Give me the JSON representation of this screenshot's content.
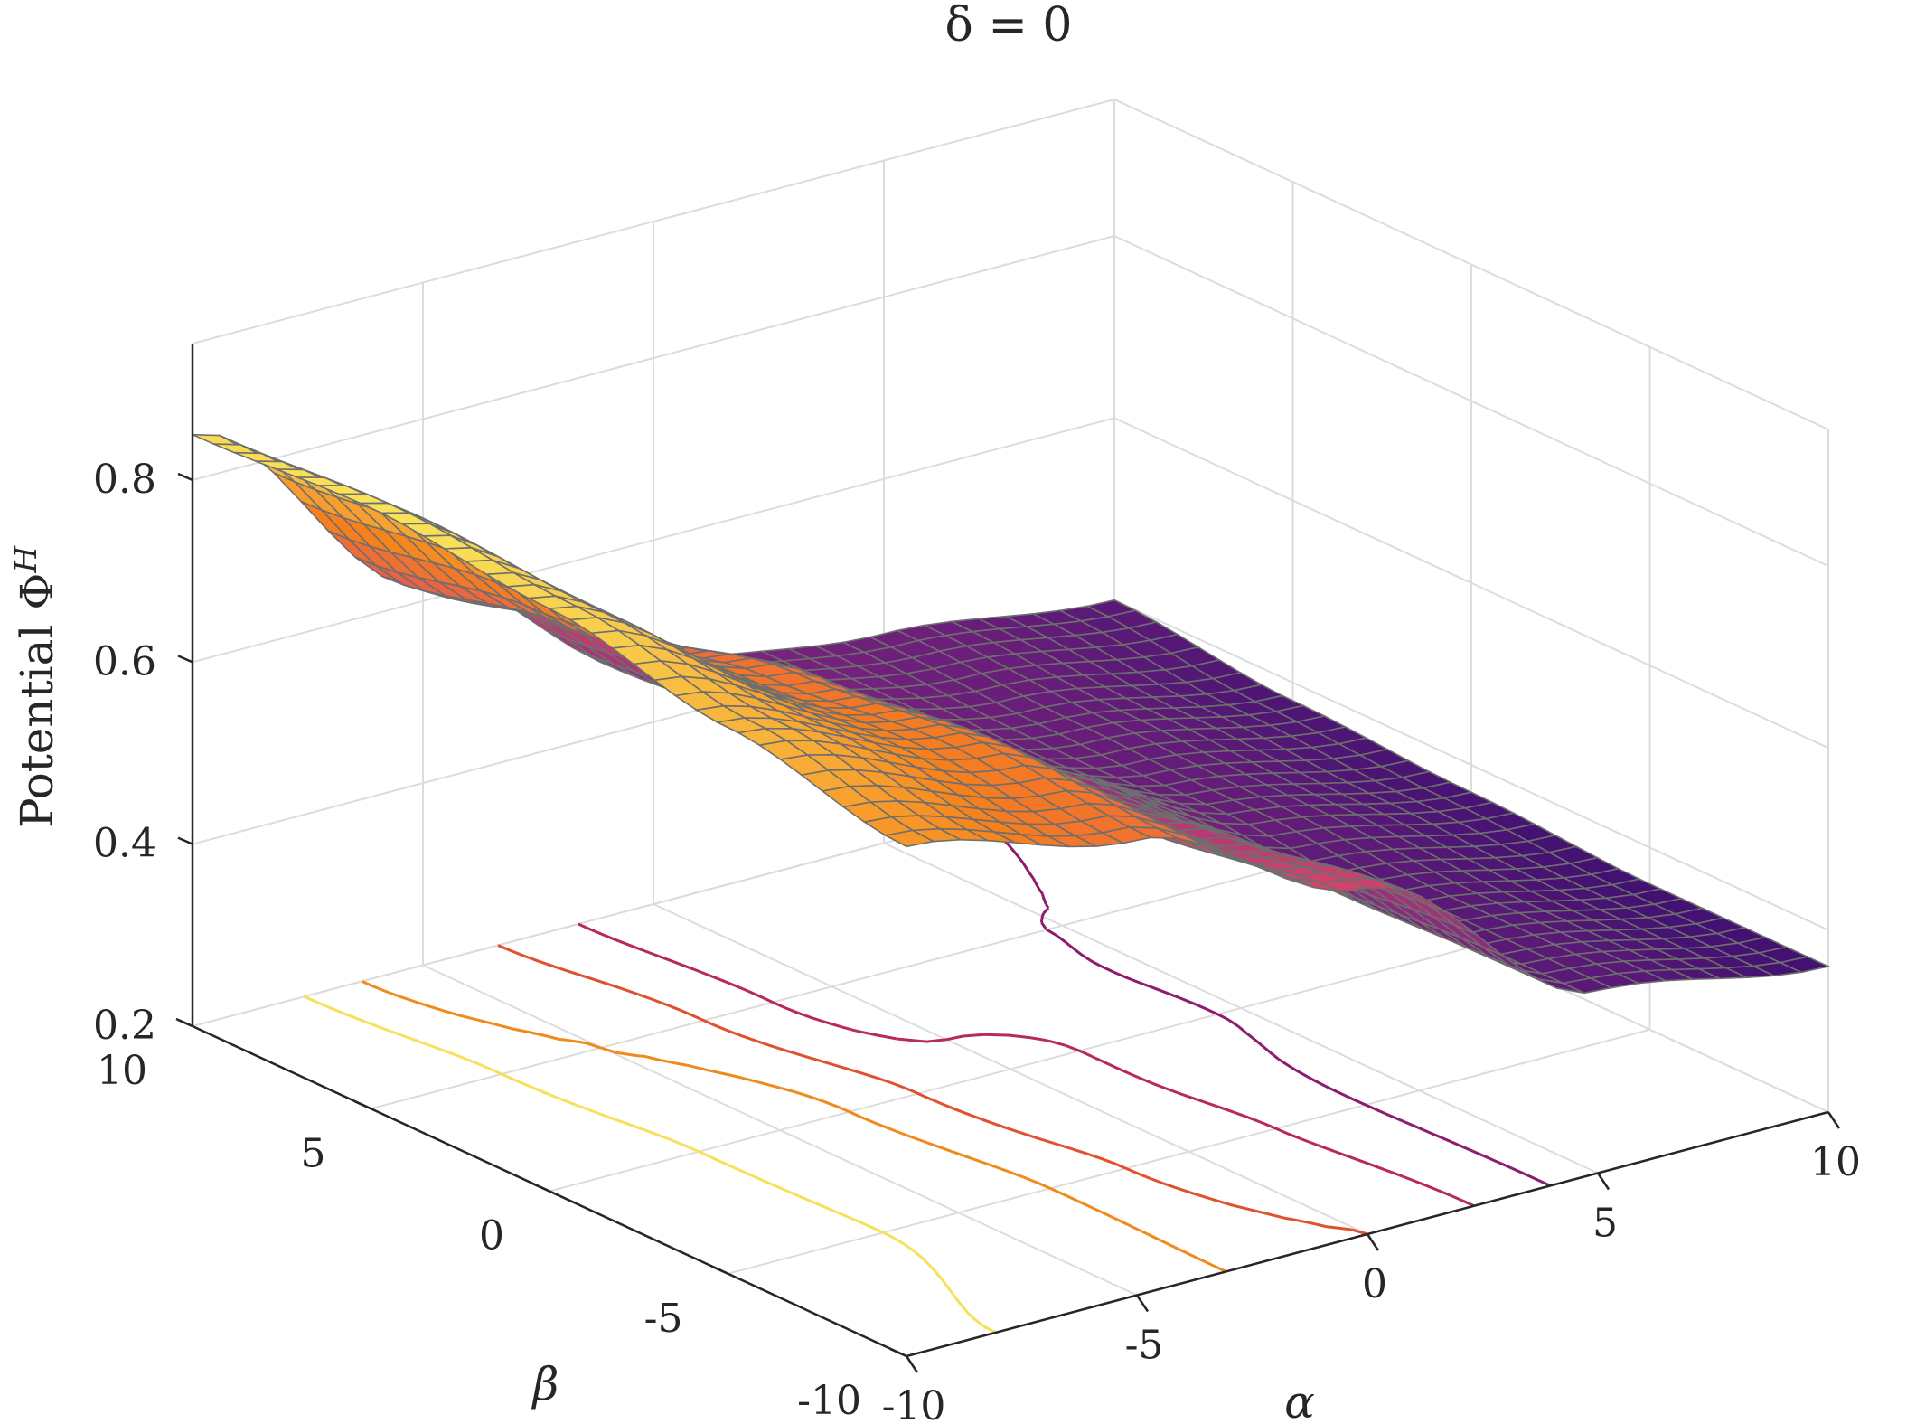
{
  "chart_data": {
    "type": "surface",
    "title": "δ = 0",
    "xlabel": "α",
    "ylabel": "β",
    "zlabel": "Potential Φ",
    "zlabel_sup": "H",
    "xlim": [
      -10,
      10
    ],
    "ylim": [
      -10,
      10
    ],
    "zlim": [
      0.2,
      0.95
    ],
    "x_ticks": [
      "-10",
      "-5",
      "0",
      "5",
      "10"
    ],
    "y_ticks": [
      "-10",
      "-5",
      "0",
      "5",
      "10"
    ],
    "z_ticks": [
      "0.2",
      "0.4",
      "0.6",
      "0.8"
    ],
    "grid": true,
    "colormap": "inferno-like",
    "colormap_stops": [
      "#3b0f70",
      "#8c2981",
      "#de4968",
      "#f7811a",
      "#f9e55c"
    ],
    "mesh_color": "#6e6e6e",
    "contour_levels": [
      0.35,
      0.42,
      0.5,
      0.58,
      0.66,
      0.74
    ],
    "contour_colors": [
      "#5a1678",
      "#8c1d6e",
      "#b82a5a",
      "#e0512f",
      "#f08a1c",
      "#f6e15a"
    ],
    "surface_samples": {
      "alpha": [
        -10,
        -5,
        0,
        5,
        10
      ],
      "beta": [
        -10,
        -5,
        0,
        5,
        10
      ],
      "phi": [
        [
          0.76,
          0.7,
          0.58,
          0.4,
          0.36
        ],
        [
          0.8,
          0.72,
          0.55,
          0.4,
          0.36
        ],
        [
          0.84,
          0.7,
          0.5,
          0.41,
          0.37
        ],
        [
          0.86,
          0.66,
          0.47,
          0.42,
          0.38
        ],
        [
          0.85,
          0.62,
          0.46,
          0.43,
          0.4
        ]
      ]
    }
  }
}
